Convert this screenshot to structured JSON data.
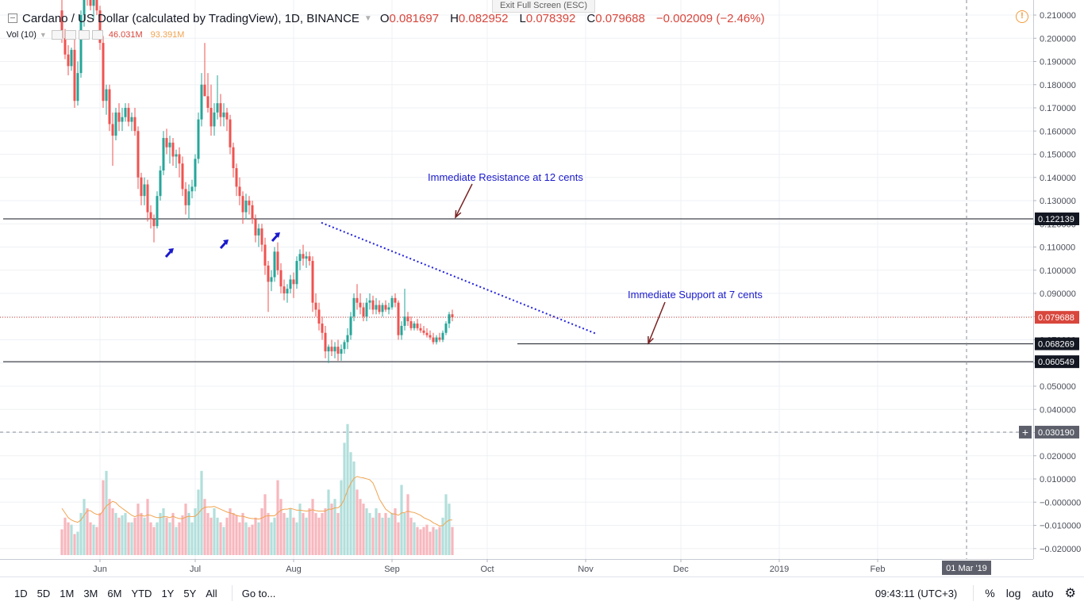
{
  "header": {
    "title": "Cardano / US Dollar (calculated by TradingView), 1D, BINANCE",
    "open_label": "O",
    "open": "0.081697",
    "high_label": "H",
    "high": "0.082952",
    "low_label": "L",
    "low": "0.078392",
    "close_label": "C",
    "close": "0.079688",
    "change": "−0.002009 (−2.46%)"
  },
  "exit_fullscreen": "Exit Full Screen (ESC)",
  "volume_indicator": {
    "label": "Vol (10)",
    "volume": "46.031M",
    "ma": "93.391M"
  },
  "annotations": {
    "resistance": "Immediate Resistance at 12 cents",
    "support": "Immediate Support at 7 cents"
  },
  "price_badges": {
    "resistance": "0.122139",
    "current": "0.079688",
    "support": "0.068269",
    "low": "0.060549",
    "crosshair": "0.030190"
  },
  "time_badge": "01 Mar '19",
  "bottom_bar": {
    "ranges": [
      "1D",
      "5D",
      "1M",
      "3M",
      "6M",
      "YTD",
      "1Y",
      "5Y",
      "All"
    ],
    "goto": "Go to...",
    "time": "09:43:11 (UTC+3)",
    "percent": "%",
    "log": "log",
    "auto": "auto"
  },
  "colors": {
    "up": "#26a69a",
    "down": "#ef5350",
    "vol_up": "#b2dfdb",
    "vol_down": "#f7b7bd",
    "vol_ma": "#f0a350",
    "annotation": "#1a1acc",
    "arrow": "#7a2222",
    "trendline": "#2222dd",
    "current_price": "#d8463c"
  },
  "chart_data": {
    "type": "candlestick",
    "title": "Cardano / US Dollar (calculated by TradingView), 1D, BINANCE",
    "x_tick_labels": [
      "Jun",
      "Jul",
      "Aug",
      "Sep",
      "Oct",
      "Nov",
      "Dec",
      "2019",
      "Feb"
    ],
    "y_tick_labels": [
      "0.210000",
      "0.200000",
      "0.190000",
      "0.180000",
      "0.170000",
      "0.160000",
      "0.150000",
      "0.140000",
      "0.130000",
      "0.120000",
      "0.110000",
      "0.100000",
      "0.090000",
      "0.080000",
      "0.070000",
      "0.060000",
      "0.050000",
      "0.040000",
      "0.030000",
      "0.020000",
      "0.010000",
      "−0.000000",
      "−0.010000",
      "−0.020000"
    ],
    "ylim": [
      -0.022,
      0.213
    ],
    "grid": true,
    "first_date": "2018-05-20",
    "candles": [
      [
        0.212,
        0.22,
        0.198,
        0.2
      ],
      [
        0.2,
        0.204,
        0.191,
        0.193
      ],
      [
        0.193,
        0.197,
        0.184,
        0.188
      ],
      [
        0.188,
        0.196,
        0.186,
        0.195
      ],
      [
        0.195,
        0.2,
        0.17,
        0.173
      ],
      [
        0.173,
        0.19,
        0.171,
        0.185
      ],
      [
        0.185,
        0.212,
        0.183,
        0.21
      ],
      [
        0.21,
        0.225,
        0.205,
        0.22
      ],
      [
        0.22,
        0.222,
        0.214,
        0.218
      ],
      [
        0.218,
        0.225,
        0.212,
        0.214
      ],
      [
        0.214,
        0.223,
        0.208,
        0.22
      ],
      [
        0.22,
        0.23,
        0.21,
        0.212
      ],
      [
        0.212,
        0.214,
        0.195,
        0.198
      ],
      [
        0.198,
        0.201,
        0.17,
        0.173
      ],
      [
        0.173,
        0.18,
        0.167,
        0.178
      ],
      [
        0.178,
        0.18,
        0.16,
        0.163
      ],
      [
        0.163,
        0.168,
        0.145,
        0.158
      ],
      [
        0.158,
        0.17,
        0.156,
        0.168
      ],
      [
        0.168,
        0.172,
        0.16,
        0.164
      ],
      [
        0.164,
        0.17,
        0.16,
        0.166
      ],
      [
        0.166,
        0.172,
        0.164,
        0.17
      ],
      [
        0.17,
        0.172,
        0.162,
        0.164
      ],
      [
        0.164,
        0.168,
        0.16,
        0.166
      ],
      [
        0.166,
        0.17,
        0.158,
        0.16
      ],
      [
        0.16,
        0.162,
        0.135,
        0.14
      ],
      [
        0.14,
        0.142,
        0.128,
        0.132
      ],
      [
        0.132,
        0.14,
        0.128,
        0.137
      ],
      [
        0.137,
        0.139,
        0.121,
        0.125
      ],
      [
        0.125,
        0.128,
        0.118,
        0.122
      ],
      [
        0.122,
        0.124,
        0.112,
        0.119
      ],
      [
        0.119,
        0.134,
        0.118,
        0.132
      ],
      [
        0.132,
        0.145,
        0.13,
        0.143
      ],
      [
        0.143,
        0.16,
        0.141,
        0.157
      ],
      [
        0.157,
        0.161,
        0.15,
        0.153
      ],
      [
        0.153,
        0.158,
        0.146,
        0.155
      ],
      [
        0.155,
        0.157,
        0.145,
        0.149
      ],
      [
        0.149,
        0.152,
        0.144,
        0.15
      ],
      [
        0.15,
        0.153,
        0.14,
        0.146
      ],
      [
        0.146,
        0.149,
        0.132,
        0.135
      ],
      [
        0.135,
        0.138,
        0.124,
        0.128
      ],
      [
        0.128,
        0.137,
        0.122,
        0.134
      ],
      [
        0.134,
        0.139,
        0.131,
        0.136
      ],
      [
        0.136,
        0.15,
        0.134,
        0.148
      ],
      [
        0.148,
        0.168,
        0.146,
        0.165
      ],
      [
        0.165,
        0.185,
        0.162,
        0.18
      ],
      [
        0.18,
        0.198,
        0.176,
        0.175
      ],
      [
        0.175,
        0.185,
        0.168,
        0.17
      ],
      [
        0.17,
        0.18,
        0.158,
        0.162
      ],
      [
        0.162,
        0.172,
        0.158,
        0.168
      ],
      [
        0.168,
        0.184,
        0.165,
        0.172
      ],
      [
        0.172,
        0.176,
        0.162,
        0.166
      ],
      [
        0.166,
        0.172,
        0.162,
        0.168
      ],
      [
        0.168,
        0.17,
        0.16,
        0.165
      ],
      [
        0.165,
        0.167,
        0.15,
        0.153
      ],
      [
        0.153,
        0.155,
        0.14,
        0.144
      ],
      [
        0.144,
        0.146,
        0.132,
        0.136
      ],
      [
        0.136,
        0.14,
        0.128,
        0.132
      ],
      [
        0.132,
        0.134,
        0.12,
        0.125
      ],
      [
        0.125,
        0.133,
        0.122,
        0.13
      ],
      [
        0.13,
        0.132,
        0.124,
        0.128
      ],
      [
        0.128,
        0.13,
        0.12,
        0.122
      ],
      [
        0.122,
        0.124,
        0.112,
        0.115
      ],
      [
        0.115,
        0.12,
        0.11,
        0.118
      ],
      [
        0.118,
        0.12,
        0.108,
        0.111
      ],
      [
        0.111,
        0.114,
        0.098,
        0.102
      ],
      [
        0.102,
        0.104,
        0.082,
        0.095
      ],
      [
        0.095,
        0.1,
        0.091,
        0.097
      ],
      [
        0.097,
        0.11,
        0.095,
        0.108
      ],
      [
        0.108,
        0.112,
        0.098,
        0.1
      ],
      [
        0.1,
        0.103,
        0.09,
        0.093
      ],
      [
        0.093,
        0.096,
        0.087,
        0.09
      ],
      [
        0.09,
        0.094,
        0.086,
        0.092
      ],
      [
        0.092,
        0.098,
        0.09,
        0.096
      ],
      [
        0.096,
        0.099,
        0.088,
        0.094
      ],
      [
        0.094,
        0.106,
        0.092,
        0.104
      ],
      [
        0.104,
        0.109,
        0.1,
        0.107
      ],
      [
        0.107,
        0.111,
        0.102,
        0.105
      ],
      [
        0.105,
        0.108,
        0.101,
        0.106
      ],
      [
        0.106,
        0.108,
        0.102,
        0.104
      ],
      [
        0.104,
        0.106,
        0.082,
        0.086
      ],
      [
        0.086,
        0.09,
        0.08,
        0.083
      ],
      [
        0.083,
        0.086,
        0.074,
        0.077
      ],
      [
        0.077,
        0.08,
        0.07,
        0.073
      ],
      [
        0.073,
        0.076,
        0.062,
        0.065
      ],
      [
        0.065,
        0.068,
        0.06,
        0.067
      ],
      [
        0.067,
        0.07,
        0.063,
        0.065
      ],
      [
        0.065,
        0.069,
        0.062,
        0.067
      ],
      [
        0.067,
        0.07,
        0.061,
        0.064
      ],
      [
        0.064,
        0.068,
        0.061,
        0.066
      ],
      [
        0.066,
        0.07,
        0.064,
        0.069
      ],
      [
        0.069,
        0.075,
        0.066,
        0.072
      ],
      [
        0.072,
        0.082,
        0.07,
        0.08
      ],
      [
        0.08,
        0.09,
        0.078,
        0.088
      ],
      [
        0.088,
        0.094,
        0.083,
        0.086
      ],
      [
        0.086,
        0.09,
        0.081,
        0.084
      ],
      [
        0.084,
        0.086,
        0.078,
        0.08
      ],
      [
        0.08,
        0.088,
        0.078,
        0.086
      ],
      [
        0.086,
        0.09,
        0.083,
        0.087
      ],
      [
        0.087,
        0.089,
        0.081,
        0.083
      ],
      [
        0.083,
        0.088,
        0.081,
        0.085
      ],
      [
        0.085,
        0.087,
        0.081,
        0.082
      ],
      [
        0.082,
        0.086,
        0.08,
        0.085
      ],
      [
        0.085,
        0.087,
        0.082,
        0.083
      ],
      [
        0.083,
        0.086,
        0.081,
        0.084
      ],
      [
        0.084,
        0.089,
        0.083,
        0.088
      ],
      [
        0.088,
        0.09,
        0.084,
        0.086
      ],
      [
        0.086,
        0.087,
        0.07,
        0.072
      ],
      [
        0.072,
        0.078,
        0.07,
        0.076
      ],
      [
        0.076,
        0.092,
        0.074,
        0.08
      ],
      [
        0.08,
        0.082,
        0.076,
        0.078
      ],
      [
        0.078,
        0.08,
        0.074,
        0.075
      ],
      [
        0.075,
        0.078,
        0.074,
        0.077
      ],
      [
        0.077,
        0.079,
        0.074,
        0.075
      ],
      [
        0.075,
        0.077,
        0.073,
        0.074
      ],
      [
        0.074,
        0.076,
        0.072,
        0.073
      ],
      [
        0.073,
        0.075,
        0.071,
        0.072
      ],
      [
        0.072,
        0.074,
        0.07,
        0.071
      ],
      [
        0.071,
        0.073,
        0.068,
        0.069
      ],
      [
        0.069,
        0.072,
        0.068,
        0.071
      ],
      [
        0.071,
        0.073,
        0.069,
        0.07
      ],
      [
        0.07,
        0.074,
        0.069,
        0.073
      ],
      [
        0.073,
        0.078,
        0.072,
        0.077
      ],
      [
        0.077,
        0.082,
        0.075,
        0.081
      ],
      [
        0.081,
        0.083,
        0.078,
        0.0797
      ]
    ],
    "volume": [
      5.5,
      8,
      7,
      6.5,
      4.5,
      5,
      9,
      12,
      10,
      7,
      6.5,
      6,
      9,
      16,
      18,
      12,
      10,
      9,
      8,
      8.5,
      9,
      7,
      7,
      8,
      11,
      9,
      8,
      12,
      7,
      6,
      7,
      9,
      10,
      8,
      7,
      9,
      6,
      7,
      8.5,
      11,
      9,
      7,
      10,
      14,
      18,
      12,
      9,
      8,
      10,
      8,
      7,
      6,
      8,
      10,
      9,
      8.5,
      7,
      9,
      7,
      6,
      6.5,
      8,
      7,
      10,
      13,
      9,
      7,
      8,
      16,
      12,
      9,
      8,
      10,
      8,
      7,
      11,
      9,
      8,
      10,
      12,
      9,
      8,
      9,
      10,
      14,
      11,
      12,
      9,
      16,
      24,
      28,
      22,
      20,
      14,
      12,
      11,
      10,
      9,
      8,
      10,
      9,
      8,
      9,
      8,
      9,
      10,
      7,
      15,
      9,
      13,
      8,
      7,
      6,
      5.5,
      6,
      6.5,
      5,
      6,
      5.5,
      6,
      8,
      13,
      11,
      6
    ],
    "volume_ma_10": [
      10,
      9,
      8,
      7.5,
      7.2,
      7,
      7.5,
      8.5,
      9.5,
      9.5,
      9,
      8.7,
      8.6,
      9.5,
      10.5,
      11,
      11.5,
      11.2,
      10.5,
      10,
      9.5,
      9,
      8.5,
      8.2,
      8.5,
      8.5,
      8.3,
      8.6,
      8.5,
      8.2,
      8,
      8,
      8.2,
      8.2,
      8,
      8.3,
      8,
      7.8,
      7.8,
      8.1,
      8.3,
      8.2,
      8.3,
      8.9,
      9.8,
      10.2,
      10.3,
      10.3,
      10.4,
      10.1,
      9.8,
      9.5,
      9.2,
      9,
      8.8,
      8.5,
      8.3,
      8.3,
      8.1,
      7.9,
      7.8,
      7.8,
      7.7,
      7.9,
      8.3,
      8.4,
      8.4,
      8.4,
      9,
      9.6,
      9.8,
      9.8,
      10,
      9.8,
      9.6,
      9.6,
      9.5,
      9.4,
      9.5,
      9.7,
      9.5,
      9.4,
      9.4,
      9.4,
      9.8,
      9.8,
      10.1,
      10.1,
      10.7,
      12,
      13.9,
      15.3,
      16.4,
      16.8,
      16.6,
      16.5,
      16.3,
      16.1,
      15.4,
      13.8,
      12,
      10.9,
      9.8,
      9.3,
      8.8,
      8.8,
      8.5,
      9,
      9.1,
      9.4,
      9.2,
      9.1,
      8.8,
      8.5,
      8,
      7.7,
      7.4,
      6.9,
      6.6,
      6.2,
      6.3,
      7,
      7.5,
      7.5
    ],
    "horizontal_levels": [
      0.122139,
      0.068269,
      0.060549
    ],
    "current_price": 0.079688
  }
}
